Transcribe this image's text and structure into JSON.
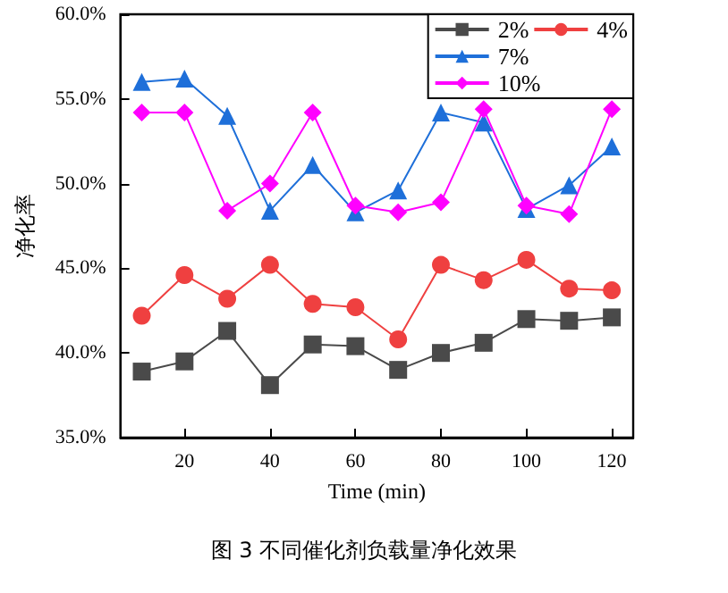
{
  "chart_data": {
    "type": "line",
    "xlabel": "Time (min)",
    "ylabel": "净化率",
    "annotations": [
      "图 3 不同催化剂负载量净化效果"
    ],
    "x": [
      10,
      20,
      30,
      40,
      50,
      60,
      70,
      80,
      90,
      100,
      110,
      120
    ],
    "xlim": [
      5,
      125
    ],
    "xticks": [
      20,
      40,
      60,
      80,
      100,
      120
    ],
    "ylim": [
      35,
      60
    ],
    "yticks": [
      {
        "value": 35,
        "label": "35.0%"
      },
      {
        "value": 40,
        "label": "40.0%"
      },
      {
        "value": 45,
        "label": "45.0%"
      },
      {
        "value": 50,
        "label": "50.0%"
      },
      {
        "value": 55,
        "label": "55.0%"
      },
      {
        "value": 60,
        "label": "60.0%"
      }
    ],
    "grid": false,
    "legend": "top right",
    "line_style": "solid",
    "series": [
      {
        "name": "2%",
        "color": "#4a4a4a",
        "marker": "square",
        "values": [
          38.9,
          39.5,
          41.3,
          38.1,
          40.5,
          40.4,
          39.0,
          40.0,
          40.6,
          42.0,
          41.9,
          42.1
        ]
      },
      {
        "name": "4%",
        "color": "#ef4040",
        "marker": "circle",
        "values": [
          42.2,
          44.6,
          43.2,
          45.2,
          42.9,
          42.7,
          40.8,
          45.2,
          44.3,
          45.5,
          43.8,
          43.7
        ]
      },
      {
        "name": "7%",
        "color": "#1e6fd9",
        "marker": "triangle",
        "values": [
          56.0,
          56.2,
          54.0,
          48.4,
          51.1,
          48.3,
          49.6,
          54.2,
          53.6,
          48.5,
          49.9,
          52.2
        ]
      },
      {
        "name": "10%",
        "color": "#ff00ff",
        "marker": "diamond",
        "values": [
          54.2,
          54.2,
          48.4,
          50.0,
          54.2,
          48.7,
          48.3,
          48.9,
          54.4,
          48.7,
          48.2,
          54.4
        ]
      }
    ]
  }
}
